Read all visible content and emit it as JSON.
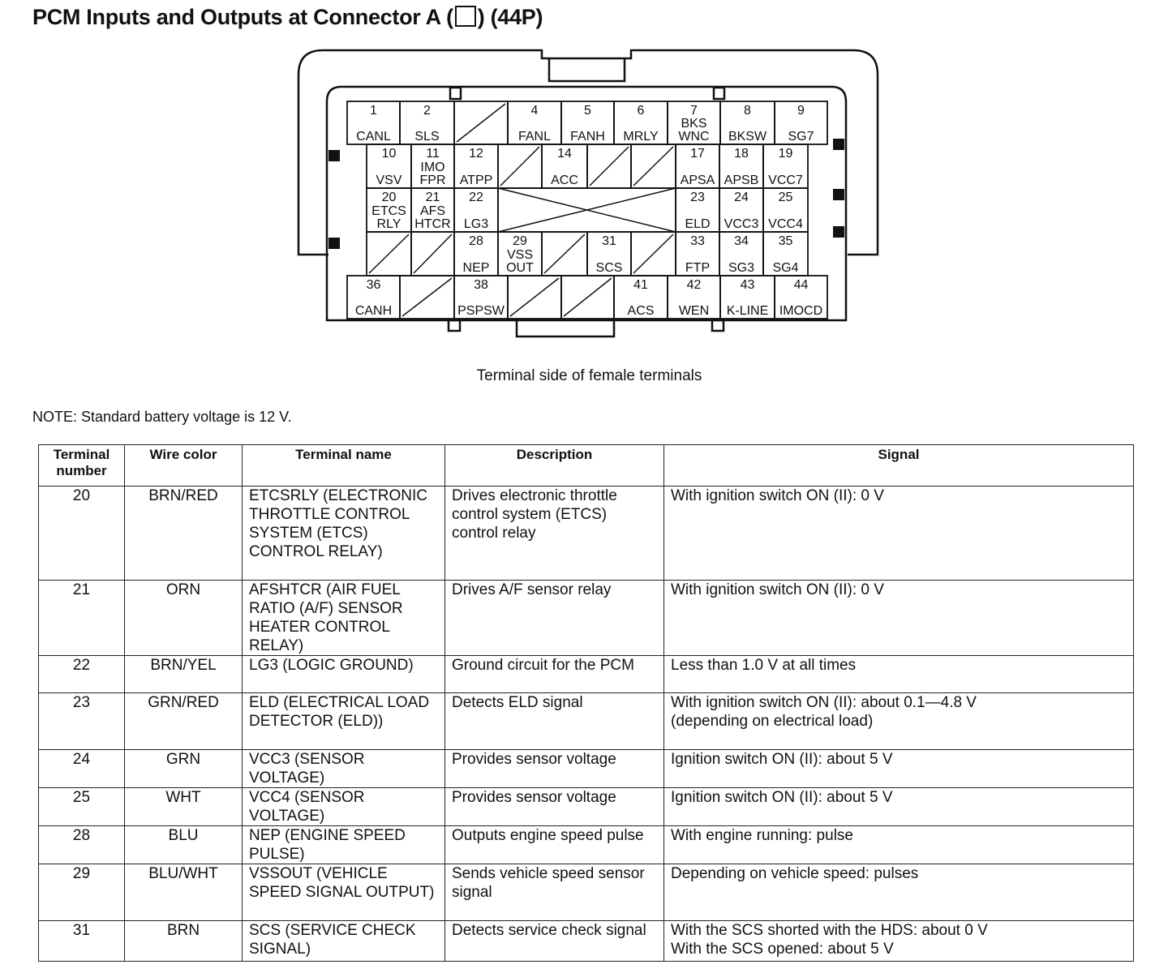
{
  "header": {
    "title": "PCM Inputs and Outputs at Connector A (",
    "title_suffix": ") (44P)"
  },
  "connector": {
    "caption": "Terminal side of female terminals",
    "terminals": [
      {
        "number": 1,
        "label": [
          "CANL"
        ]
      },
      {
        "number": 2,
        "label": [
          "SLS"
        ]
      },
      {
        "number": 4,
        "label": [
          "FANL"
        ]
      },
      {
        "number": 5,
        "label": [
          "FANH"
        ]
      },
      {
        "number": 6,
        "label": [
          "MRLY"
        ]
      },
      {
        "number": 7,
        "label": [
          "BKS",
          "WNC"
        ]
      },
      {
        "number": 8,
        "label": [
          "BKSW"
        ]
      },
      {
        "number": 9,
        "label": [
          "SG7"
        ]
      },
      {
        "number": 10,
        "label": [
          "VSV"
        ]
      },
      {
        "number": 11,
        "label": [
          "IMO",
          "FPR"
        ]
      },
      {
        "number": 12,
        "label": [
          "ATPP"
        ]
      },
      {
        "number": 14,
        "label": [
          "ACC"
        ]
      },
      {
        "number": 17,
        "label": [
          "APSA"
        ]
      },
      {
        "number": 18,
        "label": [
          "APSB"
        ]
      },
      {
        "number": 19,
        "label": [
          "VCC7"
        ]
      },
      {
        "number": 20,
        "label": [
          "ETCS",
          "RLY"
        ]
      },
      {
        "number": 21,
        "label": [
          "AFS",
          "HTCR"
        ]
      },
      {
        "number": 22,
        "label": [
          "LG3"
        ]
      },
      {
        "number": 23,
        "label": [
          "ELD"
        ]
      },
      {
        "number": 24,
        "label": [
          "VCC3"
        ]
      },
      {
        "number": 25,
        "label": [
          "VCC4"
        ]
      },
      {
        "number": 28,
        "label": [
          "NEP"
        ]
      },
      {
        "number": 29,
        "label": [
          "VSS",
          "OUT"
        ]
      },
      {
        "number": 31,
        "label": [
          "SCS"
        ]
      },
      {
        "number": 33,
        "label": [
          "FTP"
        ]
      },
      {
        "number": 34,
        "label": [
          "SG3"
        ]
      },
      {
        "number": 35,
        "label": [
          "SG4"
        ]
      },
      {
        "number": 36,
        "label": [
          "CANH"
        ]
      },
      {
        "number": 38,
        "label": [
          "PSPSW"
        ]
      },
      {
        "number": 41,
        "label": [
          "ACS"
        ]
      },
      {
        "number": 42,
        "label": [
          "WEN"
        ]
      },
      {
        "number": 43,
        "label": [
          "K-LINE"
        ]
      },
      {
        "number": 44,
        "label": [
          "IMOCD"
        ]
      }
    ]
  },
  "note": "NOTE: Standard battery voltage is 12 V.",
  "table": {
    "header": [
      "Terminal number",
      "Wire color",
      "Terminal name",
      "Description",
      "Signal"
    ],
    "rows": [
      [
        "20",
        "BRN/RED",
        "ETCSRLY (ELECTRONIC THROTTLE CONTROL SYSTEM (ETCS) CONTROL RELAY)",
        "Drives electronic throttle control system (ETCS) control relay",
        "With ignition switch ON (II): 0 V"
      ],
      [
        "21",
        "ORN",
        "AFSHTCR (AIR FUEL RATIO (A/F) SENSOR HEATER CONTROL RELAY)",
        "Drives A/F sensor relay",
        "With ignition switch ON (II): 0 V"
      ],
      [
        "22",
        "BRN/YEL",
        "LG3 (LOGIC GROUND)",
        "Ground circuit for the PCM",
        "Less than 1.0 V at all times"
      ],
      [
        "23",
        "GRN/RED",
        "ELD (ELECTRICAL LOAD DETECTOR (ELD))",
        "Detects ELD signal",
        "With ignition switch ON (II): about 0.1—4.8 V\n(depending on electrical load)"
      ],
      [
        "24",
        "GRN",
        "VCC3 (SENSOR VOLTAGE)",
        "Provides sensor voltage",
        "Ignition switch ON (II): about 5 V"
      ],
      [
        "25",
        "WHT",
        "VCC4 (SENSOR VOLTAGE)",
        "Provides sensor voltage",
        "Ignition switch ON (II): about 5 V"
      ],
      [
        "28",
        "BLU",
        "NEP (ENGINE SPEED PULSE)",
        "Outputs engine speed pulse",
        "With engine running: pulse"
      ],
      [
        "29",
        "BLU/WHT",
        "VSSOUT (VEHICLE SPEED SIGNAL OUTPUT)",
        "Sends vehicle speed sensor signal",
        "Depending on vehicle speed: pulses"
      ],
      [
        "31",
        "BRN",
        "SCS (SERVICE CHECK SIGNAL)",
        "Detects service check signal",
        "With the SCS shorted with the HDS: about 0 V\nWith the SCS opened: about 5 V"
      ]
    ]
  }
}
